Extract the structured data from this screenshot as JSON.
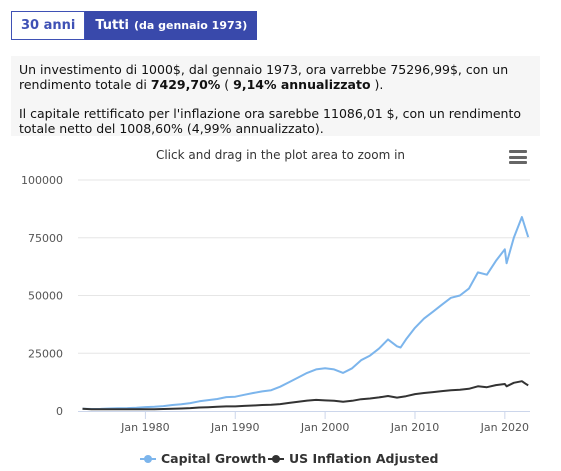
{
  "tabs": [
    {
      "label": "30 anni",
      "suffix": ""
    },
    {
      "label": "Tutti",
      "suffix": "(da gennaio 1973)"
    }
  ],
  "info": {
    "p1_a": "Un investimento di 1000$, dal gennaio 1973, ora varrebbe 75296,99$, con un rendimento totale di ",
    "p1_b": "7429,70%",
    "p1_c": " ( ",
    "p1_d": "9,14% annualizzato",
    "p1_e": " ).",
    "p2": "Il capitale rettificato per l'inflazione ora sarebbe 11086,01 $, con un rendimento totale netto del 1008,60% (4,99% annualizzato)."
  },
  "chart_hint": "Click and drag in the plot area to zoom in",
  "colors": {
    "capital": "#7cb5ec",
    "inflation": "#333333",
    "grid": "#e6e6e6"
  },
  "chart_data": {
    "type": "line",
    "title": "",
    "xlabel": "",
    "ylabel": "",
    "x_range": [
      1972.5,
      2022.8
    ],
    "ylim": [
      0,
      100000
    ],
    "y_ticks": [
      0,
      25000,
      50000,
      75000,
      100000
    ],
    "x_ticks": [
      1980,
      1990,
      2000,
      2010,
      2020
    ],
    "x_tick_labels": [
      "Jan 1980",
      "Jan 1990",
      "Jan 2000",
      "Jan 2010",
      "Jan 2020"
    ],
    "legend_position": "bottom-center",
    "series": [
      {
        "name": "Capital Growth",
        "x": [
          1973,
          1974,
          1975,
          1976,
          1977,
          1978,
          1979,
          1980,
          1981,
          1982,
          1983,
          1984,
          1985,
          1986,
          1987,
          1988,
          1989,
          1990,
          1991,
          1992,
          1993,
          1994,
          1995,
          1996,
          1997,
          1998,
          1999,
          2000,
          2001,
          2002,
          2003,
          2004,
          2005,
          2006,
          2007,
          2008,
          2008.4,
          2009,
          2010,
          2011,
          2012,
          2013,
          2014,
          2015,
          2016,
          2017,
          2018,
          2019,
          2020,
          2020.2,
          2021,
          2021.9,
          2022.3,
          2022.6
        ],
        "values": [
          1000,
          850,
          900,
          1100,
          1150,
          1250,
          1450,
          1700,
          1850,
          2100,
          2600,
          2900,
          3400,
          4200,
          4700,
          5200,
          6000,
          6200,
          7000,
          7800,
          8500,
          9000,
          10500,
          12500,
          14500,
          16500,
          18000,
          18500,
          18000,
          16500,
          18500,
          22000,
          24000,
          27000,
          31000,
          28000,
          27500,
          31000,
          36000,
          40000,
          43000,
          46000,
          49000,
          50000,
          53000,
          60000,
          59000,
          65000,
          70000,
          64000,
          75000,
          84000,
          79000,
          75297
        ]
      },
      {
        "name": "US Inflation Adjusted",
        "x": [
          1973,
          1974,
          1975,
          1976,
          1977,
          1978,
          1979,
          1980,
          1981,
          1982,
          1983,
          1984,
          1985,
          1986,
          1987,
          1988,
          1989,
          1990,
          1991,
          1992,
          1993,
          1994,
          1995,
          1996,
          1997,
          1998,
          1999,
          2000,
          2001,
          2002,
          2003,
          2004,
          2005,
          2006,
          2007,
          2008,
          2009,
          2010,
          2011,
          2012,
          2013,
          2014,
          2015,
          2016,
          2017,
          2018,
          2019,
          2020,
          2020.2,
          2021,
          2021.9,
          2022.3,
          2022.6
        ],
        "values": [
          1000,
          780,
          760,
          800,
          780,
          740,
          760,
          780,
          800,
          860,
          1000,
          1100,
          1250,
          1500,
          1650,
          1800,
          2000,
          2000,
          2200,
          2400,
          2600,
          2700,
          3000,
          3500,
          4000,
          4500,
          4800,
          4600,
          4400,
          4000,
          4400,
          5100,
          5400,
          5900,
          6500,
          5800,
          6400,
          7300,
          7800,
          8200,
          8600,
          9000,
          9200,
          9600,
          10700,
          10300,
          11200,
          11700,
          10700,
          12200,
          12900,
          11800,
          11086
        ]
      }
    ]
  }
}
